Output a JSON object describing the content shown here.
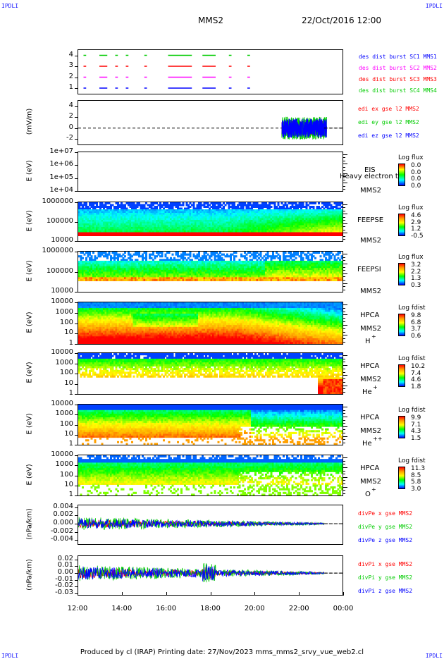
{
  "corners": {
    "tl": "IPDLI",
    "tr": "IPDLI",
    "bl": "IPDLI",
    "br": "IPDLI"
  },
  "header": {
    "spacecraft": "MMS2",
    "datetime": "22/Oct/2016 12:00"
  },
  "footer": "Produced by cl (IRAP)   Printing date: 27/Nov/2023   mms_mms2_srvy_vue_web2.cl",
  "chart_data": [
    {
      "type": "line",
      "panel": "burst-availability",
      "yticks": [
        "4",
        "3",
        "2",
        "1"
      ],
      "ylim": [
        0.5,
        4.5
      ],
      "series": [
        {
          "name": "des dist burst SC1 MMS1",
          "color": "#0000ff"
        },
        {
          "name": "des dist burst SC2 MMS2",
          "color": "#ff00ff"
        },
        {
          "name": "des dist burst SC3 MMS3",
          "color": "#ff0000"
        },
        {
          "name": "des dist burst SC4 MMS4",
          "color": "#00cc00"
        }
      ]
    },
    {
      "type": "line",
      "panel": "edi-electric-field",
      "ylabel": "(mV/m)",
      "yticks": [
        "4",
        "2",
        "0",
        "-2"
      ],
      "ylim": [
        -3,
        5
      ],
      "series": [
        {
          "name": "edi ex gse l2 MMS2",
          "color": "#ff0000"
        },
        {
          "name": "edi ey gse l2 MMS2",
          "color": "#00cc00"
        },
        {
          "name": "edi ez gse l2 MMS2",
          "color": "#0000ff"
        }
      ]
    },
    {
      "type": "heatmap",
      "panel": "eis",
      "ylabel": "E (eV)",
      "yticks": [
        "1e+07",
        "1e+06",
        "1e+05",
        "1e+04"
      ],
      "instrument": [
        "EIS",
        "MMS2"
      ],
      "overlay": "Heavy electron to",
      "cbar_title": "Log flux",
      "cbar_values": [
        "0.0",
        "0.0",
        "0.0",
        "0.0"
      ]
    },
    {
      "type": "heatmap",
      "panel": "feeps-electron",
      "ylabel": "E (eV)",
      "yticks": [
        "1000000",
        "100000",
        "10000"
      ],
      "instrument": [
        "FEEPSE",
        "MMS2"
      ],
      "cbar_title": "Log flux",
      "cbar_values": [
        "4.6",
        "2.9",
        "1.2",
        "-0.5"
      ]
    },
    {
      "type": "heatmap",
      "panel": "feeps-ion",
      "ylabel": "E (eV)",
      "yticks": [
        "1000000",
        "100000",
        "10000"
      ],
      "instrument": [
        "FEEPSI",
        "MMS2"
      ],
      "cbar_title": "Log flux",
      "cbar_values": [
        "3.2",
        "2.2",
        "1.3",
        "0.3"
      ]
    },
    {
      "type": "heatmap",
      "panel": "hpca-h",
      "ylabel": "E (eV)",
      "yticks": [
        "10000",
        "1000",
        "100",
        "10",
        "1"
      ],
      "instrument": [
        "HPCA",
        "MMS2",
        "H",
        "+"
      ],
      "cbar_title": "Log fdist",
      "cbar_values": [
        "9.8",
        "6.8",
        "3.7",
        "0.6"
      ]
    },
    {
      "type": "heatmap",
      "panel": "hpca-he",
      "ylabel": "E (eV)",
      "yticks": [
        "10000",
        "1000",
        "100",
        "10",
        "1"
      ],
      "instrument": [
        "HPCA",
        "MMS2",
        "He",
        "+"
      ],
      "cbar_title": "Log fdist",
      "cbar_values": [
        "10.2",
        "7.4",
        "4.6",
        "1.8"
      ]
    },
    {
      "type": "heatmap",
      "panel": "hpca-he2",
      "ylabel": "E (eV)",
      "yticks": [
        "10000",
        "1000",
        "100",
        "10",
        "1"
      ],
      "instrument": [
        "HPCA",
        "MMS2",
        "He",
        "++"
      ],
      "cbar_title": "Log fdist",
      "cbar_values": [
        "9.9",
        "7.1",
        "4.3",
        "1.5"
      ]
    },
    {
      "type": "heatmap",
      "panel": "hpca-o",
      "ylabel": "E (eV)",
      "yticks": [
        "10000",
        "1000",
        "100",
        "10",
        "1"
      ],
      "instrument": [
        "HPCA",
        "MMS2",
        "O",
        "+"
      ],
      "cbar_title": "Log fdist",
      "cbar_values": [
        "11.3",
        "8.5",
        "5.8",
        "3.0"
      ]
    },
    {
      "type": "line",
      "panel": "divpe",
      "ylabel": "(nPa/km)",
      "yticks": [
        "0.004",
        "0.002",
        "0.000",
        "-0.002",
        "-0.004"
      ],
      "ylim": [
        -0.005,
        0.0045
      ],
      "series": [
        {
          "name": "divPe x gse MMS2",
          "color": "#ff0000"
        },
        {
          "name": "divPe y gse MMS2",
          "color": "#00cc00"
        },
        {
          "name": "divPe z gse MMS2",
          "color": "#0000ff"
        }
      ]
    },
    {
      "type": "line",
      "panel": "divpi",
      "ylabel": "(nPa/km)",
      "yticks": [
        "0.02",
        "0.01",
        "0.00",
        "-0.01",
        "-0.02",
        "-0.03"
      ],
      "ylim": [
        -0.032,
        0.025
      ],
      "series": [
        {
          "name": "divPi x gse MMS2",
          "color": "#ff0000"
        },
        {
          "name": "divPi y gse MMS2",
          "color": "#00cc00"
        },
        {
          "name": "divPi z gse MMS2",
          "color": "#0000ff"
        }
      ]
    }
  ],
  "xaxis": {
    "ticks": [
      "12:00",
      "14:00",
      "16:00",
      "18:00",
      "20:00",
      "22:00",
      "00:00"
    ]
  }
}
